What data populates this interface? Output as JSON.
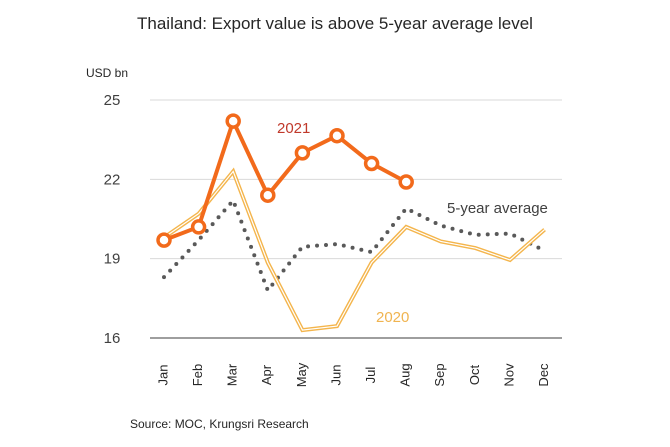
{
  "chart_data": {
    "type": "line",
    "title": "Thailand: Export value is above 5-year average level",
    "ylabel": "USD bn",
    "xlabel": "",
    "ylim": [
      16,
      25
    ],
    "yticks": [
      16,
      19,
      22,
      25
    ],
    "grid": true,
    "categories": [
      "Jan",
      "Feb",
      "Mar",
      "Apr",
      "May",
      "Jun",
      "Jul",
      "Aug",
      "Sep",
      "Oct",
      "Nov",
      "Dec"
    ],
    "series": [
      {
        "name": "5-year average",
        "label": "5-year average",
        "color": "#595959",
        "style": "dotted",
        "values": [
          18.3,
          19.7,
          21.2,
          17.8,
          19.45,
          19.55,
          19.25,
          20.9,
          20.25,
          19.9,
          19.95,
          19.3
        ]
      },
      {
        "name": "2020",
        "label": "2020",
        "color": "#F4B54C",
        "style": "double",
        "values": [
          19.8,
          20.7,
          22.3,
          18.85,
          16.3,
          16.45,
          18.85,
          20.2,
          19.65,
          19.4,
          18.95,
          20.1
        ]
      },
      {
        "name": "2021",
        "label": "2021",
        "color": "#F26A1B",
        "labelColor": "#C0392B",
        "style": "markers",
        "values": [
          19.7,
          20.2,
          24.2,
          21.4,
          23.0,
          23.65,
          22.6,
          21.9
        ]
      }
    ],
    "source": "Source: MOC, Krungsri Research"
  }
}
